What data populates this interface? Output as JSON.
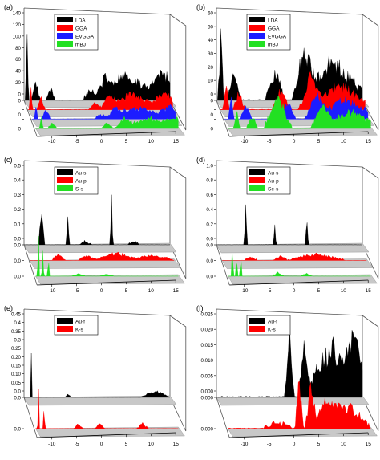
{
  "colors": {
    "black": "#000000",
    "red": "#ff0000",
    "blue": "#1c1cff",
    "green": "#22e022",
    "floor": "#c8c8c8",
    "frame": "#555555"
  },
  "chart_data": [
    {
      "panel_label": "(a)",
      "type": "area",
      "series": [
        {
          "name": "LDA",
          "color": "black"
        },
        {
          "name": "GGA",
          "color": "red"
        },
        {
          "name": "EVGGA",
          "color": "blue"
        },
        {
          "name": "mBJ",
          "color": "green"
        }
      ],
      "y_ticks": [
        "0",
        "20",
        "40",
        "60",
        "80",
        "100",
        "120",
        "140"
      ],
      "floor_ticks": [
        "0",
        "0",
        "0"
      ],
      "x_ticks": [
        "-10",
        "-5",
        "0",
        "5",
        "10",
        "15"
      ],
      "legend": "top-right"
    },
    {
      "panel_label": "(b)",
      "type": "area",
      "series": [
        {
          "name": "LDA",
          "color": "black"
        },
        {
          "name": "GGA",
          "color": "red"
        },
        {
          "name": "EVGGA",
          "color": "blue"
        },
        {
          "name": "mBJ",
          "color": "green"
        }
      ],
      "y_ticks": [
        "0",
        "10",
        "20",
        "30",
        "40",
        "50",
        "60"
      ],
      "floor_ticks": [
        "0",
        "0",
        "0"
      ],
      "x_ticks": [
        "-10",
        "-5",
        "0",
        "5",
        "10",
        "15"
      ],
      "legend": "top-right"
    },
    {
      "panel_label": "(c)",
      "type": "area",
      "series": [
        {
          "name": "Au-s",
          "color": "black"
        },
        {
          "name": "Au-p",
          "color": "red"
        },
        {
          "name": "S-s",
          "color": "green"
        }
      ],
      "y_ticks": [
        "0.0",
        "0.1",
        "0.2",
        "0.3",
        "0.4",
        "0.5"
      ],
      "floor_ticks": [
        "0.0",
        "0.0",
        "0.0"
      ],
      "x_ticks": [
        "-10",
        "-5",
        "0",
        "5",
        "10",
        "15"
      ],
      "legend": "top-right"
    },
    {
      "panel_label": "(d)",
      "type": "area",
      "series": [
        {
          "name": "Au-s",
          "color": "black"
        },
        {
          "name": "Au-p",
          "color": "red"
        },
        {
          "name": "Se-s",
          "color": "green"
        }
      ],
      "y_ticks": [
        "0.0",
        "0.2",
        "0.4",
        "0.6",
        "0.8",
        "1.0"
      ],
      "floor_ticks": [
        "0.0",
        "0.0",
        "0.0"
      ],
      "x_ticks": [
        "-10",
        "-5",
        "0",
        "5",
        "10",
        "15"
      ],
      "legend": "top-right"
    },
    {
      "panel_label": "(e)",
      "type": "area",
      "series": [
        {
          "name": "Au-f",
          "color": "black"
        },
        {
          "name": "K-s",
          "color": "red"
        }
      ],
      "y_ticks": [
        "0.0",
        "0.05",
        "0.10",
        "0.15",
        "0.20",
        "0.25",
        "0.3",
        "0.35",
        "0.4",
        "0.45"
      ],
      "floor_ticks": [
        "0.0",
        "0.0"
      ],
      "x_ticks": [
        "-10",
        "-5",
        "0",
        "5",
        "10",
        "15"
      ],
      "legend": "top-right"
    },
    {
      "panel_label": "(f)",
      "type": "area",
      "series": [
        {
          "name": "Au-f",
          "color": "black"
        },
        {
          "name": "K-s",
          "color": "red"
        }
      ],
      "y_ticks": [
        "0.000",
        "0.005",
        "0.010",
        "0.015",
        "0.020",
        "0.025"
      ],
      "floor_ticks": [
        "0.000",
        "0.000"
      ],
      "x_ticks": [
        "-10",
        "-5",
        "0",
        "5",
        "10",
        "15"
      ],
      "legend": "top-right"
    }
  ]
}
